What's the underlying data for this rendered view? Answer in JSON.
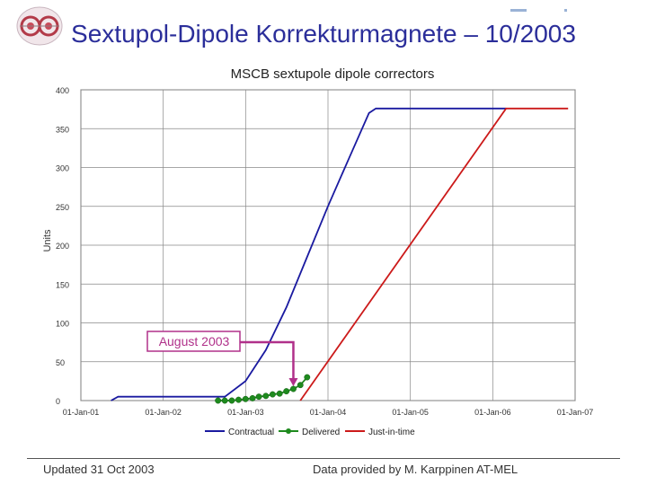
{
  "slide": {
    "title": "Sextupol-Dipole Korrekturmagnete – 10/2003",
    "footer_left": "Updated 31 Oct 2003",
    "footer_right": "Data provided by M. Karppinen   AT-MEL"
  },
  "chart_data": {
    "type": "line",
    "title": "MSCB sextupole dipole correctors",
    "xlabel": "",
    "ylabel": "Units",
    "ylim": [
      0,
      400
    ],
    "yticks": [
      0,
      50,
      100,
      150,
      200,
      250,
      300,
      350,
      400
    ],
    "x_tick_labels": [
      "01-Jan-01",
      "01-Jan-02",
      "01-Jan-03",
      "01-Jan-04",
      "01-Jan-05",
      "01-Jan-06",
      "01-Jan-07"
    ],
    "xlim": [
      "2001-01-01",
      "2007-01-01"
    ],
    "grid": true,
    "legend_position": "bottom",
    "series": [
      {
        "name": "Contractual",
        "color": "#1a1aa0",
        "x": [
          "2001-05-15",
          "2001-06-15",
          "2002-06-01",
          "2002-07-01",
          "2002-10-01",
          "2003-01-01",
          "2003-04-01",
          "2003-07-01",
          "2003-10-01",
          "2004-01-01",
          "2004-04-01",
          "2004-07-01",
          "2004-08-01",
          "2005-01-01",
          "2006-03-01"
        ],
        "y": [
          0,
          5,
          5,
          5,
          5,
          25,
          65,
          120,
          185,
          250,
          310,
          370,
          376,
          376,
          376
        ]
      },
      {
        "name": "Delivered",
        "color": "#1e8a1e",
        "x": [
          "2002-09-01",
          "2002-10-01",
          "2002-11-01",
          "2002-12-01",
          "2003-01-01",
          "2003-02-01",
          "2003-03-01",
          "2003-04-01",
          "2003-05-01",
          "2003-06-01",
          "2003-07-01",
          "2003-08-01",
          "2003-09-01",
          "2003-10-01"
        ],
        "y": [
          0,
          0,
          0,
          1,
          2,
          3,
          5,
          6,
          8,
          9,
          12,
          15,
          20,
          30
        ]
      },
      {
        "name": "Just-in-time",
        "color": "#cc1a1a",
        "x": [
          "2003-09-01",
          "2006-03-01",
          "2006-12-01"
        ],
        "y": [
          0,
          376,
          376
        ]
      }
    ],
    "annotation": {
      "text": "August 2003",
      "points_to": [
        "2003-08-01",
        15
      ]
    }
  }
}
